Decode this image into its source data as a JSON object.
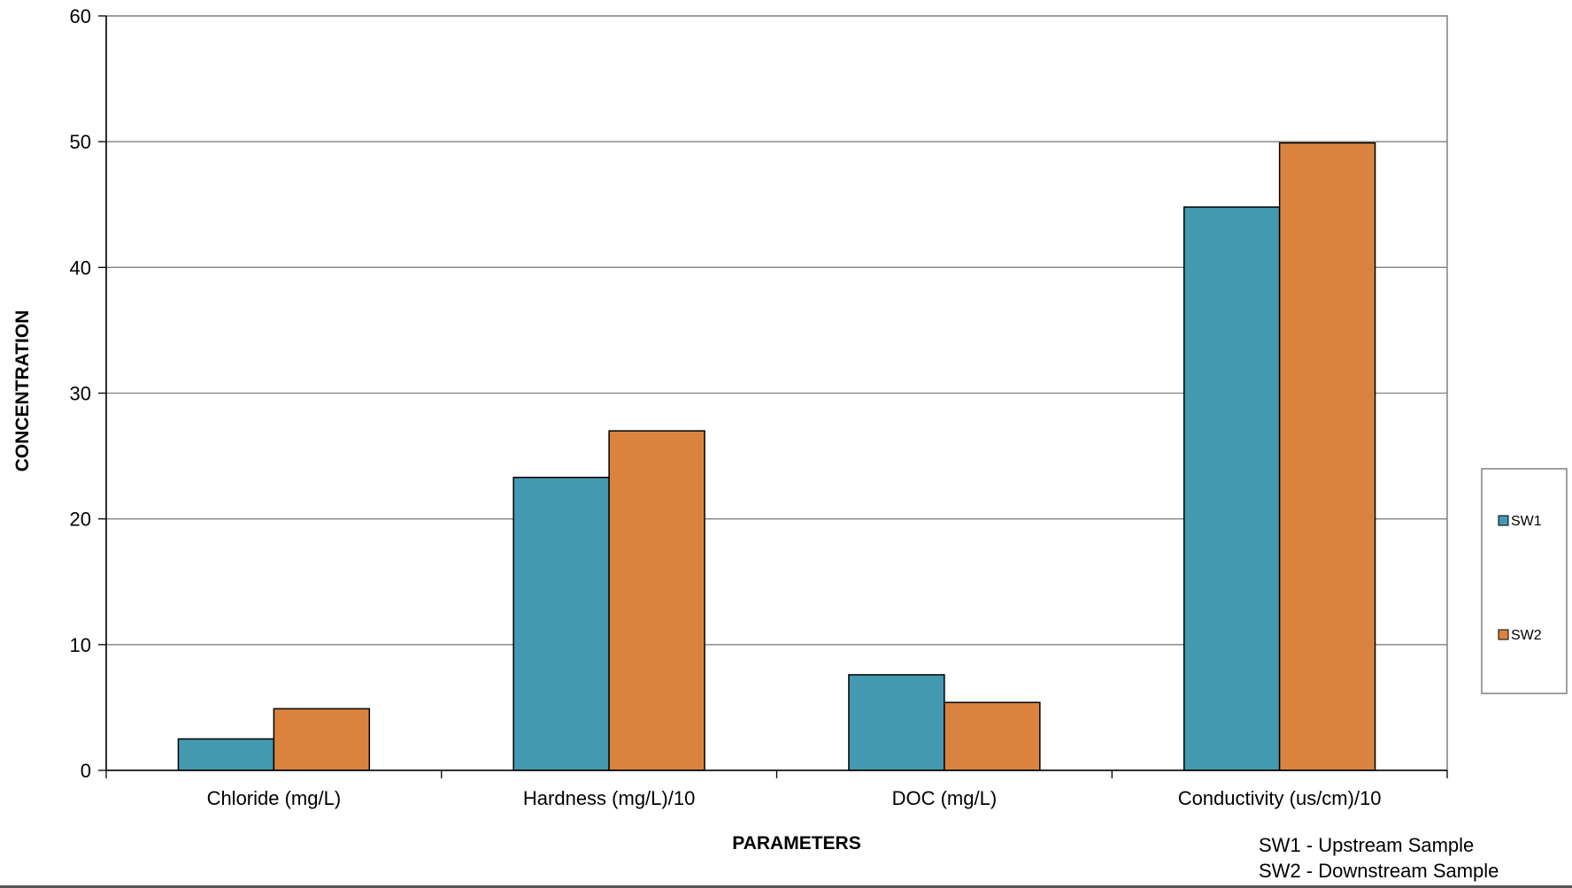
{
  "chart_data": {
    "type": "bar",
    "title": "",
    "xlabel": "PARAMETERS",
    "ylabel": "CONCENTRATION",
    "ylim": [
      0,
      60
    ],
    "yticks": [
      0,
      10,
      20,
      30,
      40,
      50,
      60
    ],
    "grid": true,
    "legend_position": "right",
    "categories": [
      "Chloride (mg/L)",
      "Hardness (mg/L)/10",
      "DOC (mg/L)",
      "Conductivity (us/cm)/10"
    ],
    "series": [
      {
        "name": "SW1",
        "color": "#4399B0",
        "values": [
          2.5,
          23.3,
          7.6,
          44.8
        ]
      },
      {
        "name": "SW2",
        "color": "#DA833E",
        "values": [
          4.9,
          27.0,
          5.4,
          49.9
        ]
      }
    ],
    "notes": [
      "SW1 - Upstream Sample",
      "SW2 - Downstream Sample"
    ]
  }
}
